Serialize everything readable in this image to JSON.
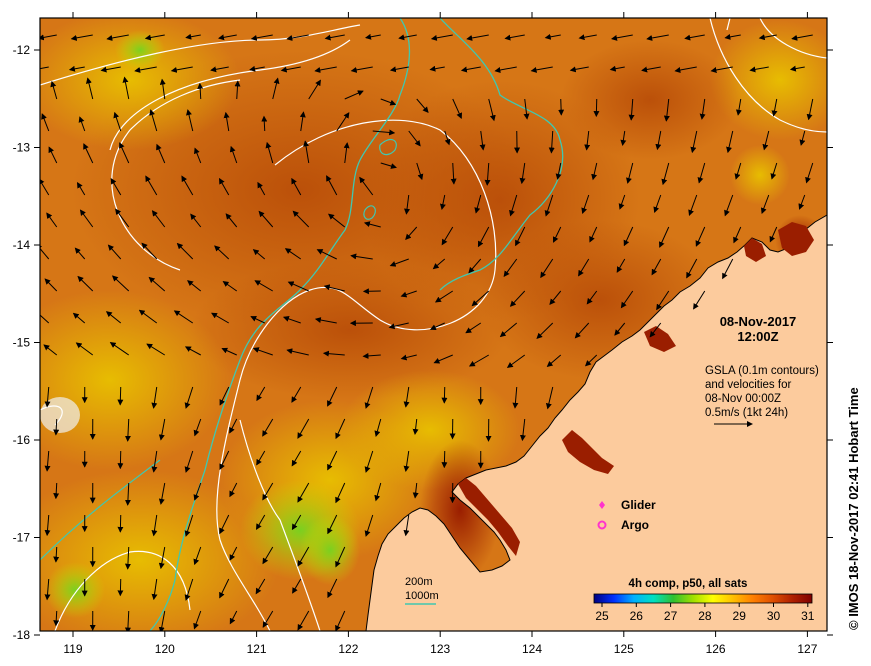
{
  "map": {
    "date": "08-Nov-2017",
    "time": "12:00Z",
    "gsla_lines": [
      "GSLA (0.1m contours)",
      "and velocities for",
      "08-Nov 00:00Z",
      "0.5m/s (1kt 24h)"
    ],
    "x_ticks": [
      "119",
      "120",
      "121",
      "122",
      "123",
      "124",
      "125",
      "126",
      "127"
    ],
    "y_ticks": [
      "-12",
      "-13",
      "-14",
      "-15",
      "-16",
      "-17",
      "-18"
    ],
    "legend": [
      {
        "label": "Glider",
        "color": "#ff33cc",
        "symbol": "diamond"
      },
      {
        "label": "Argo",
        "color": "#ff33cc",
        "symbol": "ring"
      }
    ],
    "depth_labels": [
      {
        "label": "200m",
        "color": "#ffffff"
      },
      {
        "label": "1000m",
        "color": "#40c8b0"
      }
    ],
    "colorbar": {
      "title": "4h comp, p50, all sats",
      "ticks": [
        "25",
        "26",
        "27",
        "28",
        "29",
        "30",
        "31"
      ],
      "colors": [
        "#000080",
        "#0030ff",
        "#00b0ff",
        "#00e0c0",
        "#30c030",
        "#a0e000",
        "#ffff00",
        "#ffc000",
        "#ff8000",
        "#e05000",
        "#b02000",
        "#800000"
      ]
    },
    "credit": "© IMOS 18-Nov-2017 02:41 Hobart Time",
    "colors": {
      "ocean": "#d67616",
      "land": "#fccb9d",
      "coast": "#000000",
      "contour_1000m": "#40c8b0"
    }
  }
}
